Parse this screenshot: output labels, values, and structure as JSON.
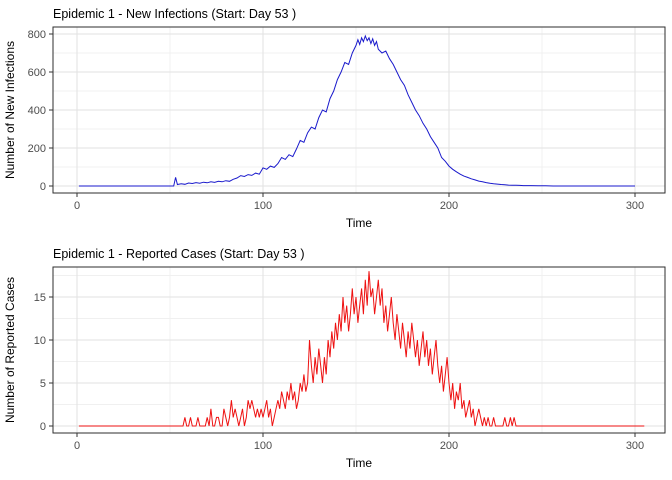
{
  "styles": {
    "background": "#ffffff",
    "panel_fill": "#ffffff",
    "panel_border": "#2e2e2e",
    "grid_major": "#e2e2e2",
    "grid_minor": "#f0f0f0",
    "tick_mark": "#333333",
    "tick_label_color": "#4d4d4d",
    "text_color": "#000000"
  },
  "chart_data": [
    {
      "type": "line",
      "title": "Epidemic 1 - New Infections (Start: Day 53 )",
      "xlabel": "Time",
      "ylabel": "Number of New Infections",
      "line_color": "#1a1acc",
      "xlim": [
        0,
        316
      ],
      "ylim": [
        0,
        836
      ],
      "x_ticks": [
        0,
        100,
        200,
        300
      ],
      "x_minor_ticks": [
        50,
        150,
        250
      ],
      "y_ticks": [
        0,
        200,
        400,
        600,
        800
      ],
      "y_minor_ticks": [
        100,
        300,
        500,
        700
      ],
      "legend": "none",
      "points": [
        [
          1,
          0
        ],
        [
          52,
          0
        ],
        [
          53,
          45
        ],
        [
          54,
          8
        ],
        [
          56,
          12
        ],
        [
          58,
          9
        ],
        [
          60,
          16
        ],
        [
          62,
          13
        ],
        [
          64,
          18
        ],
        [
          66,
          15
        ],
        [
          68,
          20
        ],
        [
          70,
          17
        ],
        [
          72,
          22
        ],
        [
          74,
          19
        ],
        [
          76,
          25
        ],
        [
          78,
          22
        ],
        [
          80,
          28
        ],
        [
          82,
          25
        ],
        [
          84,
          35
        ],
        [
          86,
          42
        ],
        [
          88,
          55
        ],
        [
          90,
          50
        ],
        [
          92,
          60
        ],
        [
          94,
          56
        ],
        [
          96,
          68
        ],
        [
          98,
          62
        ],
        [
          100,
          95
        ],
        [
          102,
          88
        ],
        [
          104,
          105
        ],
        [
          106,
          98
        ],
        [
          108,
          118
        ],
        [
          110,
          150
        ],
        [
          112,
          140
        ],
        [
          114,
          165
        ],
        [
          116,
          155
        ],
        [
          118,
          195
        ],
        [
          120,
          240
        ],
        [
          122,
          230
        ],
        [
          124,
          280
        ],
        [
          126,
          310
        ],
        [
          128,
          300
        ],
        [
          130,
          360
        ],
        [
          132,
          400
        ],
        [
          134,
          390
        ],
        [
          136,
          460
        ],
        [
          138,
          500
        ],
        [
          140,
          560
        ],
        [
          142,
          600
        ],
        [
          144,
          650
        ],
        [
          146,
          640
        ],
        [
          148,
          700
        ],
        [
          150,
          740
        ],
        [
          151,
          770
        ],
        [
          152,
          745
        ],
        [
          153,
          780
        ],
        [
          154,
          760
        ],
        [
          155,
          790
        ],
        [
          156,
          765
        ],
        [
          157,
          780
        ],
        [
          158,
          750
        ],
        [
          159,
          775
        ],
        [
          160,
          740
        ],
        [
          161,
          760
        ],
        [
          162,
          720
        ],
        [
          164,
          700
        ],
        [
          166,
          710
        ],
        [
          168,
          670
        ],
        [
          170,
          640
        ],
        [
          172,
          600
        ],
        [
          174,
          560
        ],
        [
          176,
          530
        ],
        [
          178,
          480
        ],
        [
          180,
          440
        ],
        [
          182,
          400
        ],
        [
          184,
          370
        ],
        [
          186,
          330
        ],
        [
          188,
          300
        ],
        [
          190,
          260
        ],
        [
          192,
          230
        ],
        [
          194,
          200
        ],
        [
          196,
          150
        ],
        [
          198,
          130
        ],
        [
          200,
          105
        ],
        [
          202,
          88
        ],
        [
          204,
          75
        ],
        [
          206,
          62
        ],
        [
          208,
          52
        ],
        [
          210,
          45
        ],
        [
          212,
          38
        ],
        [
          214,
          32
        ],
        [
          216,
          26
        ],
        [
          218,
          22
        ],
        [
          220,
          18
        ],
        [
          222,
          15
        ],
        [
          224,
          12
        ],
        [
          226,
          10
        ],
        [
          228,
          8
        ],
        [
          230,
          7
        ],
        [
          232,
          5
        ],
        [
          234,
          4
        ],
        [
          236,
          4
        ],
        [
          238,
          3
        ],
        [
          240,
          2
        ],
        [
          244,
          2
        ],
        [
          248,
          1
        ],
        [
          252,
          1
        ],
        [
          256,
          0
        ],
        [
          300,
          0
        ]
      ]
    },
    {
      "type": "line",
      "title": "Epidemic 1 - Reported Cases (Start: Day 53 )",
      "xlabel": "Time",
      "ylabel": "Number of Reported Cases",
      "line_color": "#ee1111",
      "xlim": [
        0,
        316
      ],
      "ylim": [
        0,
        18.5
      ],
      "x_ticks": [
        0,
        100,
        200,
        300
      ],
      "x_minor_ticks": [
        50,
        150,
        250
      ],
      "y_ticks": [
        0,
        5,
        10,
        15
      ],
      "y_minor_ticks": [
        2.5,
        7.5,
        12.5,
        17.5
      ],
      "legend": "none",
      "x_start": 1,
      "values": [
        0,
        0,
        0,
        0,
        0,
        0,
        0,
        0,
        0,
        0,
        0,
        0,
        0,
        0,
        0,
        0,
        0,
        0,
        0,
        0,
        0,
        0,
        0,
        0,
        0,
        0,
        0,
        0,
        0,
        0,
        0,
        0,
        0,
        0,
        0,
        0,
        0,
        0,
        0,
        0,
        0,
        0,
        0,
        0,
        0,
        0,
        0,
        0,
        0,
        0,
        0,
        0,
        0,
        0,
        0,
        0,
        0,
        1,
        0,
        0,
        1,
        0,
        0,
        0,
        1,
        0,
        0,
        0,
        0,
        1,
        0,
        2,
        0,
        0,
        1,
        1,
        0,
        0,
        2,
        1,
        0,
        1,
        3,
        1,
        2,
        1,
        0,
        1,
        2,
        0,
        1,
        3,
        2,
        3,
        2,
        1,
        2,
        1,
        2,
        1,
        2,
        3,
        1,
        2,
        0,
        1,
        2,
        3,
        2,
        4,
        3,
        2,
        4,
        3,
        5,
        3,
        4,
        2,
        3,
        5,
        4,
        6,
        4,
        5,
        10,
        7,
        5,
        8,
        6,
        9,
        7,
        5,
        8,
        6,
        10,
        8,
        11,
        9,
        12,
        10,
        13,
        11,
        15,
        12,
        14,
        11,
        13,
        16,
        13,
        15,
        12,
        14,
        16,
        13,
        17,
        14,
        18,
        15,
        16,
        13,
        15,
        17,
        14,
        16,
        12,
        14,
        11,
        13,
        15,
        12,
        10,
        13,
        11,
        9,
        12,
        10,
        8,
        11,
        9,
        12,
        10,
        8,
        10,
        7,
        9,
        11,
        8,
        10,
        7,
        9,
        6,
        8,
        10,
        7,
        5,
        7,
        4,
        6,
        8,
        5,
        3,
        5,
        2,
        4,
        3,
        5,
        2,
        3,
        1,
        2,
        3,
        1,
        2,
        0,
        1,
        2,
        1,
        0,
        1,
        0,
        1,
        0,
        0,
        1,
        0,
        0,
        0,
        0,
        0,
        1,
        0,
        0,
        1,
        0,
        1,
        0,
        0,
        0,
        0,
        0,
        0,
        0,
        0,
        0,
        0,
        0,
        0,
        0,
        0,
        0,
        0,
        0,
        0,
        0,
        0,
        0,
        0,
        0,
        0,
        0,
        0,
        0,
        0,
        0,
        0,
        0,
        0,
        0,
        0,
        0,
        0,
        0,
        0,
        0,
        0,
        0,
        0,
        0,
        0,
        0,
        0,
        0,
        0,
        0,
        0,
        0,
        0,
        0,
        0,
        0,
        0,
        0,
        0,
        0,
        0,
        0,
        0,
        0,
        0,
        0,
        0,
        0,
        0,
        0,
        0
      ]
    }
  ]
}
